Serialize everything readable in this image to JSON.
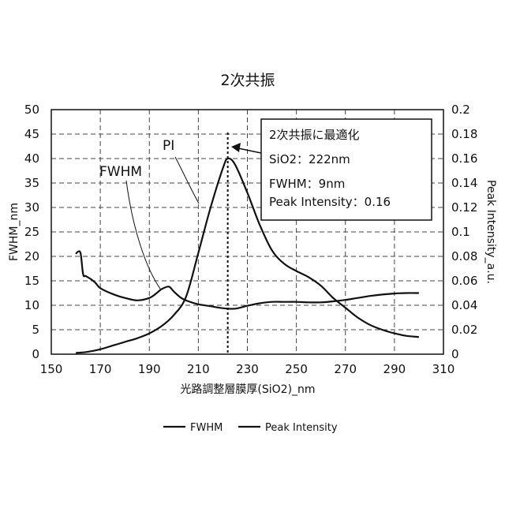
{
  "chart_data": {
    "type": "line",
    "title": "2次共振",
    "xlabel": "光路調整層膜厚(SiO2)_nm",
    "ylabel": "FWHM_nm",
    "y2label": "Peak Intensity_a.u.",
    "xlim": [
      150,
      310
    ],
    "ylim": [
      0,
      50
    ],
    "y2lim": [
      0,
      0.2
    ],
    "xticks": [
      150,
      170,
      190,
      210,
      230,
      250,
      270,
      290,
      310
    ],
    "yticks": [
      0,
      5,
      10,
      15,
      20,
      25,
      30,
      35,
      40,
      45,
      50
    ],
    "y2ticks": [
      0,
      0.02,
      0.04,
      0.06,
      0.08,
      0.1,
      0.12,
      0.14,
      0.16,
      0.18,
      0.2
    ],
    "grid": true,
    "grid_style": "dashed",
    "legend_position": "bottom-center",
    "series": [
      {
        "name": "FWHM",
        "axis": "left",
        "x": [
          160,
          161,
          162,
          163,
          164,
          166,
          168,
          170,
          175,
          180,
          185,
          190,
          193,
          195,
          198,
          200,
          203,
          206,
          210,
          215,
          220,
          225,
          230,
          235,
          240,
          245,
          250,
          255,
          260,
          265,
          270,
          275,
          280,
          285,
          290,
          295,
          300
        ],
        "y": [
          20.5,
          21,
          20.5,
          16.3,
          16,
          15.4,
          14.6,
          13.5,
          12.3,
          11.5,
          11.0,
          11.5,
          12.5,
          13.3,
          13.8,
          12.8,
          11.5,
          10.8,
          10.2,
          9.8,
          9.4,
          9.3,
          9.9,
          10.4,
          10.7,
          10.7,
          10.7,
          10.6,
          10.6,
          10.8,
          11.1,
          11.5,
          11.9,
          12.2,
          12.4,
          12.5,
          12.5
        ]
      },
      {
        "name": "Peak Intensity",
        "axis": "right",
        "x": [
          160,
          165,
          170,
          175,
          180,
          185,
          190,
          195,
          200,
          205,
          210,
          215,
          220,
          222,
          225,
          230,
          235,
          240,
          245,
          250,
          255,
          260,
          265,
          270,
          275,
          280,
          285,
          290,
          295,
          300
        ],
        "y": [
          0.001,
          0.002,
          0.004,
          0.007,
          0.01,
          0.013,
          0.017,
          0.023,
          0.032,
          0.047,
          0.083,
          0.12,
          0.152,
          0.16,
          0.155,
          0.132,
          0.106,
          0.085,
          0.074,
          0.068,
          0.063,
          0.056,
          0.046,
          0.038,
          0.03,
          0.024,
          0.02,
          0.017,
          0.015,
          0.014
        ]
      }
    ],
    "marker_x": 222,
    "annotation": {
      "lines": [
        "2次共振に最適化",
        "SiO2：222nm",
        "FWHM：9nm",
        "Peak Intensity：0.16"
      ]
    },
    "curve_labels": [
      {
        "text": "PI",
        "series": "Peak Intensity"
      },
      {
        "text": "FWHM",
        "series": "FWHM"
      }
    ]
  }
}
